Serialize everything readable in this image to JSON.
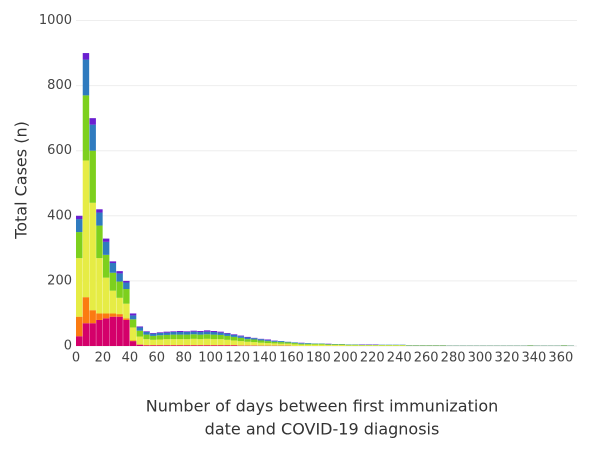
{
  "chart_data": {
    "type": "histogram",
    "xlabel": [
      "Number of days between first immunization",
      "date and COVID-19 diagnosis"
    ],
    "ylabel": "Total Cases (n)",
    "bins": [
      0,
      5,
      10,
      15,
      20,
      25,
      30,
      35,
      40,
      45,
      50,
      55,
      60,
      65,
      70,
      75,
      80,
      85,
      90,
      95,
      100,
      105,
      110,
      115,
      120,
      125,
      130,
      135,
      140,
      145,
      150,
      155,
      160,
      165,
      170,
      175,
      180,
      185,
      190,
      195,
      200,
      205,
      210,
      215,
      220,
      225,
      230,
      235,
      240,
      245,
      250,
      255,
      260,
      265,
      270,
      275,
      280,
      285,
      290,
      295,
      300,
      305,
      310,
      315,
      320,
      325,
      330,
      335,
      340,
      345,
      350,
      355,
      360,
      365,
      370
    ],
    "series": [
      {
        "color": "#d4006a",
        "values": [
          30,
          70,
          70,
          80,
          85,
          90,
          90,
          80,
          15,
          4,
          2,
          2,
          2,
          2,
          2,
          2,
          2,
          2,
          2,
          2,
          2,
          2,
          2,
          2,
          1,
          1,
          1,
          1,
          1,
          1,
          1,
          1,
          0,
          0,
          0,
          0,
          0,
          0,
          0,
          0,
          0,
          0,
          0,
          0,
          0,
          0,
          0,
          0,
          0,
          0,
          0,
          0,
          0,
          0,
          0,
          0,
          0,
          0,
          0,
          0,
          0,
          0,
          0,
          0,
          0,
          0,
          0,
          0,
          0,
          0,
          0,
          0,
          0,
          0
        ]
      },
      {
        "color": "#fb7b11",
        "values": [
          60,
          80,
          40,
          20,
          15,
          10,
          8,
          5,
          2,
          1,
          1,
          1,
          1,
          1,
          1,
          1,
          1,
          1,
          1,
          1,
          1,
          1,
          1,
          1,
          1,
          1,
          1,
          0,
          0,
          0,
          0,
          0,
          0,
          0,
          0,
          0,
          0,
          0,
          0,
          0,
          0,
          0,
          0,
          0,
          0,
          0,
          0,
          0,
          0,
          0,
          0,
          0,
          0,
          0,
          0,
          0,
          0,
          0,
          0,
          0,
          0,
          0,
          0,
          0,
          0,
          0,
          0,
          0,
          0,
          0,
          0,
          0,
          0,
          0
        ]
      },
      {
        "color": "#e6ec45",
        "values": [
          180,
          420,
          330,
          170,
          110,
          70,
          50,
          45,
          40,
          24,
          18,
          16,
          17,
          18,
          18,
          18,
          18,
          19,
          18,
          19,
          18,
          18,
          16,
          14,
          13,
          11,
          10,
          9,
          8,
          7,
          6,
          6,
          5,
          4,
          4,
          4,
          4,
          3,
          3,
          3,
          2,
          2,
          2,
          2,
          2,
          2,
          2,
          2,
          2,
          1,
          1,
          1,
          1,
          1,
          1,
          1,
          1,
          1,
          1,
          1,
          1,
          1,
          1,
          1,
          1,
          1,
          1,
          1,
          1,
          1,
          1,
          1,
          1,
          1
        ]
      },
      {
        "color": "#7dd01d",
        "values": [
          80,
          200,
          160,
          100,
          70,
          55,
          50,
          45,
          25,
          18,
          14,
          12,
          13,
          13,
          14,
          14,
          14,
          14,
          14,
          14,
          14,
          13,
          12,
          11,
          10,
          8,
          8,
          7,
          6,
          5,
          5,
          4,
          4,
          3,
          3,
          3,
          3,
          2,
          2,
          2,
          2,
          2,
          1,
          1,
          1,
          1,
          1,
          1,
          1,
          1,
          1,
          1,
          1,
          1,
          1,
          0,
          0,
          0,
          0,
          0,
          0,
          0,
          0,
          0,
          0,
          0,
          0,
          1,
          0,
          0,
          0,
          0,
          1,
          0
        ]
      },
      {
        "color": "#2f7bbf",
        "values": [
          40,
          110,
          80,
          40,
          40,
          30,
          25,
          20,
          12,
          10,
          8,
          7,
          7,
          7,
          8,
          8,
          8,
          8,
          8,
          8,
          8,
          7,
          7,
          6,
          5,
          5,
          4,
          4,
          3,
          3,
          3,
          2,
          2,
          2,
          2,
          1,
          1,
          1,
          1,
          1,
          1,
          1,
          1,
          1,
          1,
          1,
          1,
          1,
          1,
          1,
          1,
          1,
          1,
          1,
          1,
          1,
          1,
          1,
          1,
          1,
          1,
          1,
          1,
          1,
          1,
          1,
          1,
          1,
          1,
          1,
          1,
          1,
          1,
          1
        ]
      },
      {
        "color": "#6a1fd1",
        "values": [
          10,
          20,
          20,
          10,
          10,
          5,
          7,
          5,
          6,
          3,
          2,
          2,
          2,
          3,
          2,
          3,
          2,
          3,
          3,
          4,
          3,
          3,
          2,
          2,
          2,
          2,
          1,
          1,
          2,
          1,
          0,
          0,
          0,
          1,
          0,
          0,
          0,
          1,
          0,
          0,
          0,
          0,
          1,
          1,
          1,
          0,
          0,
          0,
          0,
          0,
          0,
          0,
          0,
          0,
          0,
          0,
          0,
          0,
          0,
          0,
          0,
          0,
          0,
          0,
          0,
          0,
          0,
          0,
          0,
          0,
          0,
          0,
          0,
          0
        ]
      }
    ],
    "xlim": [
      0,
      372
    ],
    "xticks": [
      0,
      20,
      40,
      60,
      80,
      100,
      120,
      140,
      160,
      180,
      200,
      220,
      240,
      260,
      280,
      300,
      320,
      340,
      360
    ],
    "ylim": [
      0,
      1020
    ],
    "yticks": [
      0,
      200,
      400,
      600,
      800,
      1000
    ],
    "grid": true
  }
}
